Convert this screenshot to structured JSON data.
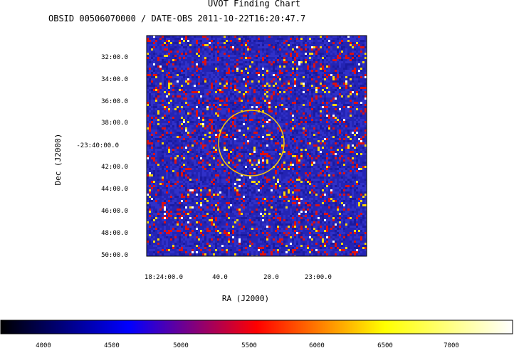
{
  "chart_data": {
    "type": "heatmap",
    "title": "UVOT Finding Chart",
    "subtitle": "OBSID 00506070000 / DATE-OBS 2011-10-22T16:20:47.7",
    "xlabel": "RA (J2000)",
    "ylabel": "Dec (J2000)",
    "x_ticks": [
      "18:24:00.0",
      "40.0",
      "20.0",
      "23:00.0"
    ],
    "y_ticks": [
      "32:00.0",
      "34:00.0",
      "36:00.0",
      "38:00.0",
      "-23:40:00.0",
      "42:00.0",
      "44:00.0",
      "46:00.0",
      "48:00.0",
      "50:00.0"
    ],
    "colorbar": {
      "ticks": [
        "4000",
        "4500",
        "5000",
        "5500",
        "6000",
        "6500",
        "7000"
      ],
      "tick_values": [
        4000,
        4500,
        5000,
        5500,
        6000,
        6500,
        7000
      ],
      "range": [
        3700,
        7400
      ],
      "colormap": [
        "#000000",
        "#0000ff",
        "#ff0000",
        "#ffff00",
        "#ffffff"
      ]
    },
    "dominant_colors": [
      "#1a1aa0",
      "#3030c8",
      "#e01010",
      "#ffd700",
      "#ffffff"
    ],
    "marker": {
      "shape": "circle",
      "color": "#ffc800"
    }
  }
}
